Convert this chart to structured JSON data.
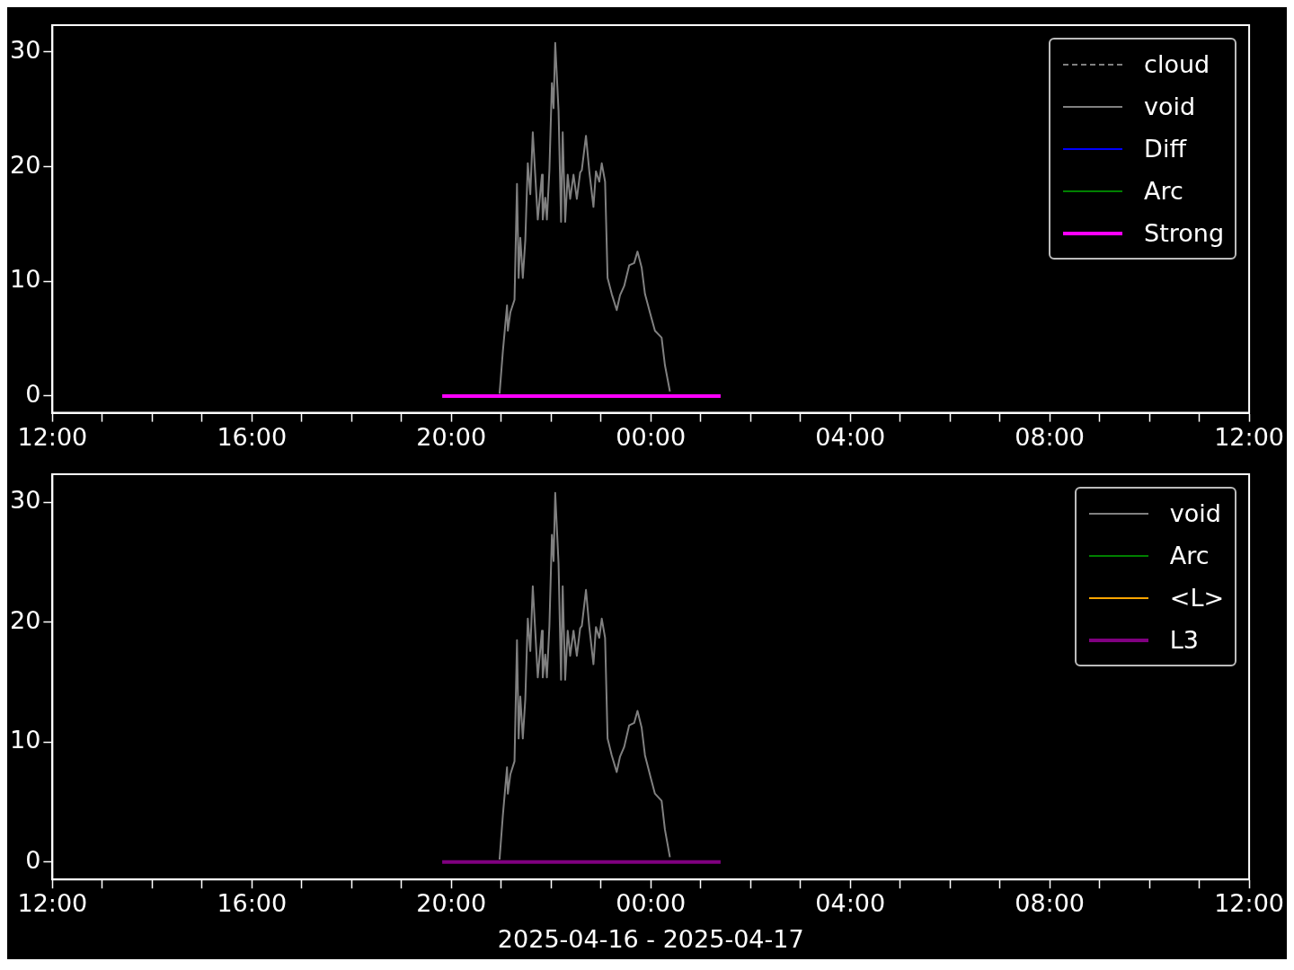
{
  "chart_data": [
    {
      "type": "line",
      "xlim": [
        "2025-04-16T12:00",
        "2025-04-17T12:00"
      ],
      "ylim": [
        -1.46,
        32.35
      ],
      "yticks": [
        0,
        10,
        20,
        30
      ],
      "xticks": [
        {
          "value": "2025-04-16T12:00",
          "label": "12:00"
        },
        {
          "value": "2025-04-16T13:00",
          "label": null
        },
        {
          "value": "2025-04-16T14:00",
          "label": null
        },
        {
          "value": "2025-04-16T15:00",
          "label": null
        },
        {
          "value": "2025-04-16T16:00",
          "label": "16:00"
        },
        {
          "value": "2025-04-16T17:00",
          "label": null
        },
        {
          "value": "2025-04-16T18:00",
          "label": null
        },
        {
          "value": "2025-04-16T19:00",
          "label": null
        },
        {
          "value": "2025-04-16T20:00",
          "label": "20:00"
        },
        {
          "value": "2025-04-16T21:00",
          "label": null
        },
        {
          "value": "2025-04-16T22:00",
          "label": null
        },
        {
          "value": "2025-04-16T23:00",
          "label": null
        },
        {
          "value": "2025-04-17T00:00",
          "label": "00:00"
        },
        {
          "value": "2025-04-17T01:00",
          "label": null
        },
        {
          "value": "2025-04-17T02:00",
          "label": null
        },
        {
          "value": "2025-04-17T03:00",
          "label": null
        },
        {
          "value": "2025-04-17T04:00",
          "label": "04:00"
        },
        {
          "value": "2025-04-17T05:00",
          "label": null
        },
        {
          "value": "2025-04-17T06:00",
          "label": null
        },
        {
          "value": "2025-04-17T07:00",
          "label": null
        },
        {
          "value": "2025-04-17T08:00",
          "label": "08:00"
        },
        {
          "value": "2025-04-17T09:00",
          "label": null
        },
        {
          "value": "2025-04-17T10:00",
          "label": null
        },
        {
          "value": "2025-04-17T11:00",
          "label": null
        },
        {
          "value": "2025-04-17T12:00",
          "label": "12:00"
        }
      ],
      "grid": false,
      "legend": "top right",
      "marker": "none",
      "series": [
        {
          "name": "cloud",
          "color": "#808080",
          "line_style": "dashed"
        },
        {
          "name": "void",
          "color": "#808080",
          "line_style": "solid",
          "x": [
            "2025-04-16T20:58",
            "2025-04-16T21:02",
            "2025-04-16T21:07",
            "2025-04-16T21:08",
            "2025-04-16T21:11",
            "2025-04-16T21:16",
            "2025-04-16T21:19",
            "2025-04-16T21:21",
            "2025-04-16T21:23",
            "2025-04-16T21:26",
            "2025-04-16T21:29",
            "2025-04-16T21:32",
            "2025-04-16T21:35",
            "2025-04-16T21:38",
            "2025-04-16T21:44",
            "2025-04-16T21:49",
            "2025-04-16T21:50",
            "2025-04-16T21:53",
            "2025-04-16T21:55",
            "2025-04-16T21:58",
            "2025-04-16T22:01",
            "2025-04-16T22:03",
            "2025-04-16T22:05",
            "2025-04-16T22:09",
            "2025-04-16T22:12",
            "2025-04-16T22:14",
            "2025-04-16T22:17",
            "2025-04-16T22:20",
            "2025-04-16T22:23",
            "2025-04-16T22:27",
            "2025-04-16T22:31",
            "2025-04-16T22:35",
            "2025-04-16T22:37",
            "2025-04-16T22:42",
            "2025-04-16T22:46",
            "2025-04-16T22:51",
            "2025-04-16T22:54",
            "2025-04-16T22:58",
            "2025-04-16T23:01",
            "2025-04-16T23:05",
            "2025-04-16T23:08",
            "2025-04-16T23:13",
            "2025-04-16T23:19",
            "2025-04-16T23:23",
            "2025-04-16T23:28",
            "2025-04-16T23:34",
            "2025-04-16T23:40",
            "2025-04-16T23:44",
            "2025-04-16T23:49",
            "2025-04-16T23:53",
            "2025-04-17T00:00",
            "2025-04-17T00:05",
            "2025-04-17T00:13",
            "2025-04-17T00:17",
            "2025-04-17T00:23"
          ],
          "values": [
            0.2,
            3.9,
            7.9,
            5.7,
            7.3,
            8.4,
            18.5,
            10.3,
            13.8,
            10.3,
            13.6,
            20.3,
            17.6,
            23.0,
            15.4,
            19.3,
            15.4,
            17.3,
            15.4,
            19.7,
            27.3,
            25.1,
            30.8,
            24.9,
            15.2,
            23.0,
            15.2,
            19.3,
            17.2,
            19.3,
            17.2,
            19.5,
            19.7,
            22.7,
            19.6,
            16.5,
            19.6,
            18.7,
            20.3,
            18.7,
            10.3,
            8.9,
            7.5,
            8.8,
            9.6,
            11.4,
            11.6,
            12.6,
            11.2,
            8.9,
            7.0,
            5.7,
            5.1,
            2.7,
            0.4
          ]
        },
        {
          "name": "Diff",
          "color": "#0000ff",
          "line_style": "solid"
        },
        {
          "name": "Arc",
          "color": "#008000",
          "line_style": "solid"
        },
        {
          "name": "Strong",
          "color": "#ff00ff",
          "line_style": "solid",
          "x": [
            "2025-04-16T19:49",
            "2025-04-17T01:24"
          ],
          "values": [
            0,
            0
          ]
        }
      ]
    },
    {
      "type": "line",
      "xlim": [
        "2025-04-16T12:00",
        "2025-04-17T12:00"
      ],
      "ylim": [
        -1.46,
        32.35
      ],
      "yticks": [
        0,
        10,
        20,
        30
      ],
      "xlabel": "2025-04-16 - 2025-04-17",
      "xticks": [
        {
          "value": "2025-04-16T12:00",
          "label": "12:00"
        },
        {
          "value": "2025-04-16T13:00",
          "label": null
        },
        {
          "value": "2025-04-16T14:00",
          "label": null
        },
        {
          "value": "2025-04-16T15:00",
          "label": null
        },
        {
          "value": "2025-04-16T16:00",
          "label": "16:00"
        },
        {
          "value": "2025-04-16T17:00",
          "label": null
        },
        {
          "value": "2025-04-16T18:00",
          "label": null
        },
        {
          "value": "2025-04-16T19:00",
          "label": null
        },
        {
          "value": "2025-04-16T20:00",
          "label": "20:00"
        },
        {
          "value": "2025-04-16T21:00",
          "label": null
        },
        {
          "value": "2025-04-16T22:00",
          "label": null
        },
        {
          "value": "2025-04-16T23:00",
          "label": null
        },
        {
          "value": "2025-04-17T00:00",
          "label": "00:00"
        },
        {
          "value": "2025-04-17T01:00",
          "label": null
        },
        {
          "value": "2025-04-17T02:00",
          "label": null
        },
        {
          "value": "2025-04-17T03:00",
          "label": null
        },
        {
          "value": "2025-04-17T04:00",
          "label": "04:00"
        },
        {
          "value": "2025-04-17T05:00",
          "label": null
        },
        {
          "value": "2025-04-17T06:00",
          "label": null
        },
        {
          "value": "2025-04-17T07:00",
          "label": null
        },
        {
          "value": "2025-04-17T08:00",
          "label": "08:00"
        },
        {
          "value": "2025-04-17T09:00",
          "label": null
        },
        {
          "value": "2025-04-17T10:00",
          "label": null
        },
        {
          "value": "2025-04-17T11:00",
          "label": null
        },
        {
          "value": "2025-04-17T12:00",
          "label": "12:00"
        }
      ],
      "grid": false,
      "legend": "top right",
      "marker": "none",
      "series": [
        {
          "name": "void",
          "color": "#808080",
          "line_style": "solid",
          "x": [
            "2025-04-16T20:58",
            "2025-04-16T21:02",
            "2025-04-16T21:07",
            "2025-04-16T21:08",
            "2025-04-16T21:11",
            "2025-04-16T21:16",
            "2025-04-16T21:19",
            "2025-04-16T21:21",
            "2025-04-16T21:23",
            "2025-04-16T21:26",
            "2025-04-16T21:29",
            "2025-04-16T21:32",
            "2025-04-16T21:35",
            "2025-04-16T21:38",
            "2025-04-16T21:44",
            "2025-04-16T21:49",
            "2025-04-16T21:50",
            "2025-04-16T21:53",
            "2025-04-16T21:55",
            "2025-04-16T21:58",
            "2025-04-16T22:01",
            "2025-04-16T22:03",
            "2025-04-16T22:05",
            "2025-04-16T22:09",
            "2025-04-16T22:12",
            "2025-04-16T22:14",
            "2025-04-16T22:17",
            "2025-04-16T22:20",
            "2025-04-16T22:23",
            "2025-04-16T22:27",
            "2025-04-16T22:31",
            "2025-04-16T22:35",
            "2025-04-16T22:37",
            "2025-04-16T22:42",
            "2025-04-16T22:46",
            "2025-04-16T22:51",
            "2025-04-16T22:54",
            "2025-04-16T22:58",
            "2025-04-16T23:01",
            "2025-04-16T23:05",
            "2025-04-16T23:08",
            "2025-04-16T23:13",
            "2025-04-16T23:19",
            "2025-04-16T23:23",
            "2025-04-16T23:28",
            "2025-04-16T23:34",
            "2025-04-16T23:40",
            "2025-04-16T23:44",
            "2025-04-16T23:49",
            "2025-04-16T23:53",
            "2025-04-17T00:00",
            "2025-04-17T00:05",
            "2025-04-17T00:13",
            "2025-04-17T00:17",
            "2025-04-17T00:23"
          ],
          "values": [
            0.2,
            3.9,
            7.9,
            5.7,
            7.3,
            8.4,
            18.5,
            10.3,
            13.8,
            10.3,
            13.6,
            20.3,
            17.6,
            23.0,
            15.4,
            19.3,
            15.4,
            17.3,
            15.4,
            19.7,
            27.3,
            25.1,
            30.8,
            24.9,
            15.2,
            23.0,
            15.2,
            19.3,
            17.2,
            19.3,
            17.2,
            19.5,
            19.7,
            22.7,
            19.6,
            16.5,
            19.6,
            18.7,
            20.3,
            18.7,
            10.3,
            8.9,
            7.5,
            8.8,
            9.6,
            11.4,
            11.6,
            12.6,
            11.2,
            8.9,
            7.0,
            5.7,
            5.1,
            2.7,
            0.4
          ]
        },
        {
          "name": "Arc",
          "color": "#008000",
          "line_style": "solid"
        },
        {
          "name": "<L>",
          "color": "#ffa500",
          "line_style": "solid"
        },
        {
          "name": "L3",
          "color": "#800080",
          "line_style": "solid",
          "x": [
            "2025-04-16T19:49",
            "2025-04-17T01:24"
          ],
          "values": [
            0,
            0
          ]
        }
      ]
    }
  ]
}
